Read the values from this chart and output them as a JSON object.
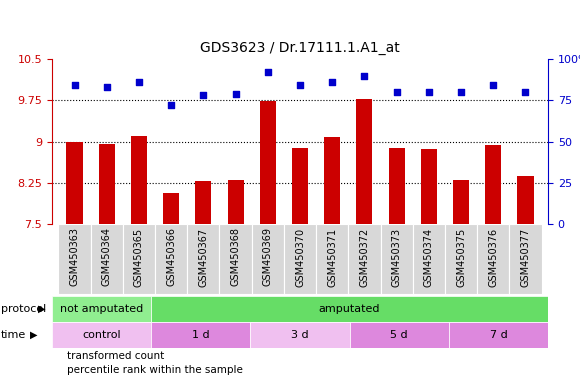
{
  "title": "GDS3623 / Dr.17111.1.A1_at",
  "samples": [
    "GSM450363",
    "GSM450364",
    "GSM450365",
    "GSM450366",
    "GSM450367",
    "GSM450368",
    "GSM450369",
    "GSM450370",
    "GSM450371",
    "GSM450372",
    "GSM450373",
    "GSM450374",
    "GSM450375",
    "GSM450376",
    "GSM450377"
  ],
  "bar_values": [
    9.0,
    8.95,
    9.1,
    8.07,
    8.28,
    8.3,
    9.73,
    8.88,
    9.08,
    9.78,
    8.88,
    8.87,
    8.3,
    8.93,
    8.38
  ],
  "dot_values": [
    84,
    83,
    86,
    72,
    78,
    79,
    92,
    84,
    86,
    90,
    80,
    80,
    80,
    84,
    80
  ],
  "bar_color": "#cc0000",
  "dot_color": "#0000cc",
  "ylim_left": [
    7.5,
    10.5
  ],
  "ylim_right": [
    0,
    100
  ],
  "yticks_left": [
    7.5,
    8.25,
    9.0,
    9.75,
    10.5
  ],
  "yticks_right": [
    0,
    25,
    50,
    75,
    100
  ],
  "ytick_labels_left": [
    "7.5",
    "8.25",
    "9",
    "9.75",
    "10.5"
  ],
  "ytick_labels_right": [
    "0",
    "25",
    "50",
    "75",
    "100%"
  ],
  "grid_lines": [
    8.25,
    9.0,
    9.75
  ],
  "protocol_groups": [
    {
      "label": "not amputated",
      "start": 0,
      "end": 3,
      "color": "#90ee90"
    },
    {
      "label": "amputated",
      "start": 3,
      "end": 15,
      "color": "#66dd66"
    }
  ],
  "time_groups": [
    {
      "label": "control",
      "start": 0,
      "end": 3,
      "color": "#f0c0f0"
    },
    {
      "label": "1 d",
      "start": 3,
      "end": 6,
      "color": "#dd88dd"
    },
    {
      "label": "3 d",
      "start": 6,
      "end": 9,
      "color": "#f0c0f0"
    },
    {
      "label": "5 d",
      "start": 9,
      "end": 12,
      "color": "#dd88dd"
    },
    {
      "label": "7 d",
      "start": 12,
      "end": 15,
      "color": "#dd88dd"
    }
  ],
  "legend_items": [
    {
      "label": "transformed count",
      "color": "#cc0000"
    },
    {
      "label": "percentile rank within the sample",
      "color": "#0000cc"
    }
  ],
  "bg_color": "#ffffff",
  "xticklabel_bg": "#d8d8d8",
  "bar_width": 0.5,
  "label_fontsize": 7,
  "row_fontsize": 8,
  "title_fontsize": 10
}
